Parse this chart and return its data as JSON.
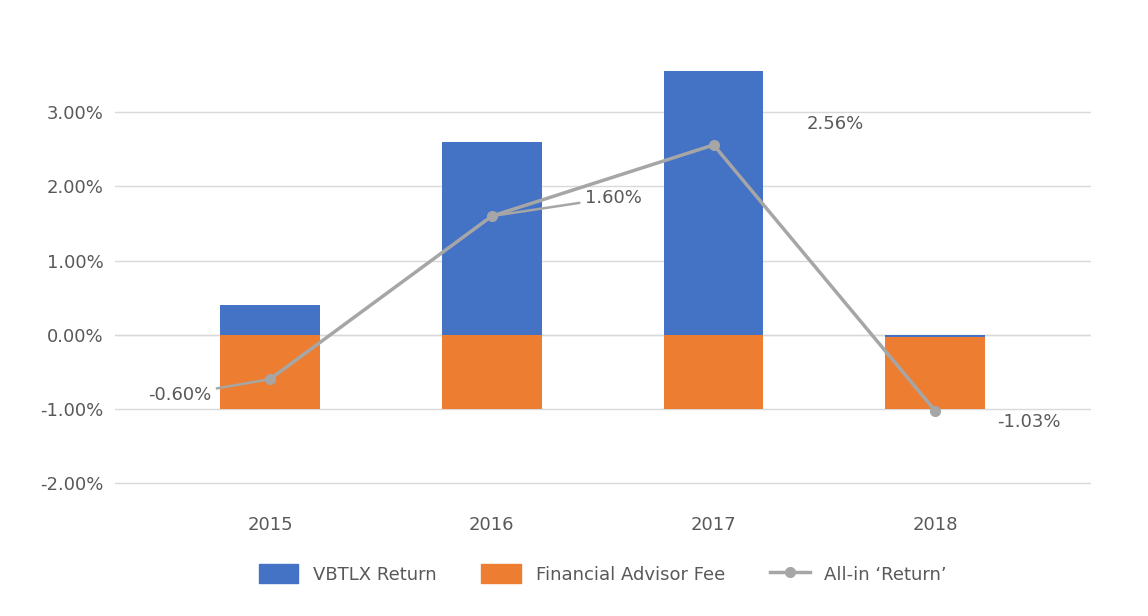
{
  "years": [
    "2015",
    "2016",
    "2017",
    "2018"
  ],
  "vbtlx_returns": [
    0.4,
    2.6,
    3.56,
    -0.03
  ],
  "advisor_fees": [
    -1.0,
    -1.0,
    -1.0,
    -1.0
  ],
  "all_in_returns": [
    -0.6,
    1.6,
    2.56,
    -1.03
  ],
  "bar_color_blue": "#4472C4",
  "bar_color_orange": "#ED7D31",
  "line_color": "#A6A6A6",
  "background_color": "#FFFFFF",
  "ylim": [
    -2.3,
    4.1
  ],
  "yticks": [
    -2.0,
    -1.0,
    0.0,
    1.0,
    2.0,
    3.0
  ],
  "ytick_labels": [
    "-2.00%",
    "-1.00%",
    "0.00%",
    "1.00%",
    "2.00%",
    "3.00%"
  ],
  "legend_labels": [
    "VBTLX Return",
    "Financial Advisor Fee",
    "All-in ‘Return’"
  ],
  "bar_width": 0.45,
  "grid_color": "#D9D9D9",
  "annotation_fontsize": 13,
  "tick_fontsize": 13,
  "legend_fontsize": 13,
  "text_color": "#595959"
}
